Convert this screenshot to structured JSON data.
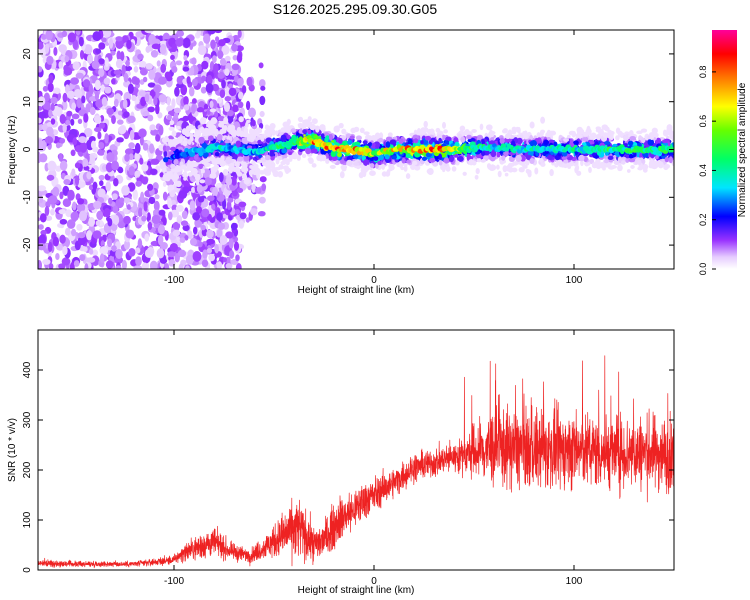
{
  "title": "S126.2025.295.09.30.G05",
  "colors": {
    "snr_line": "#ee2222",
    "axis": "#000000",
    "background": "#ffffff"
  },
  "chart_data": [
    {
      "type": "heatmap",
      "name": "spectrogram",
      "xlabel": "Height of straight line (km)",
      "ylabel": "Frequency (Hz)",
      "xlim": [
        -168,
        150
      ],
      "ylim": [
        -25,
        25
      ],
      "x_ticks": [
        -100,
        0,
        100
      ],
      "x_tick_labels": [
        "-100",
        "0",
        "100"
      ],
      "y_ticks": [
        -20,
        -10,
        0,
        10,
        20
      ],
      "y_tick_labels": [
        "-20",
        "-10",
        "0",
        "10",
        "20"
      ],
      "colorbar": {
        "label": "Normalized spectral amplitude",
        "range": [
          0.0,
          0.97
        ],
        "ticks": [
          0.0,
          0.2,
          0.4,
          0.6,
          0.8
        ],
        "tick_labels": [
          "0.0",
          "0.2",
          "0.4",
          "0.6",
          "0.8"
        ]
      },
      "ridge": {
        "description_points_x": [
          -100,
          -80,
          -60,
          -50,
          -40,
          -32,
          -25,
          -18,
          -10,
          -5,
          0,
          10,
          20,
          30,
          40,
          60,
          80,
          100,
          120,
          150
        ],
        "frequency_hz": [
          -1.5,
          0.5,
          -0.5,
          0.5,
          1.5,
          2.0,
          1.0,
          0.0,
          0.0,
          -0.5,
          -1.0,
          0.0,
          0.0,
          0.0,
          0.0,
          0.5,
          0.0,
          0.0,
          0.0,
          0.0
        ],
        "peak_amplitude": [
          0.3,
          0.4,
          0.35,
          0.45,
          0.55,
          0.85,
          0.8,
          0.9,
          0.85,
          0.8,
          0.7,
          0.75,
          0.85,
          0.9,
          0.7,
          0.4,
          0.45,
          0.45,
          0.5,
          0.5
        ]
      }
    },
    {
      "type": "line",
      "name": "snr",
      "xlabel": "Height of straight line (km)",
      "ylabel": "SNR (10 * v/v)",
      "xlim": [
        -168,
        150
      ],
      "ylim": [
        0,
        480
      ],
      "x_ticks": [
        -100,
        0,
        100
      ],
      "x_tick_labels": [
        "-100",
        "0",
        "100"
      ],
      "y_ticks": [
        0,
        100,
        200,
        300,
        400
      ],
      "y_tick_labels": [
        "0",
        "100",
        "200",
        "300",
        "400"
      ],
      "envelope": {
        "x": [
          -168,
          -150,
          -120,
          -100,
          -95,
          -85,
          -80,
          -72,
          -62,
          -55,
          -45,
          -38,
          -30,
          -25,
          -18,
          -10,
          -5,
          0,
          10,
          20,
          30,
          38,
          45,
          50,
          60,
          80,
          100,
          120,
          140,
          150
        ],
        "mean": [
          14,
          12,
          12,
          20,
          35,
          50,
          55,
          38,
          28,
          45,
          70,
          85,
          50,
          60,
          100,
          120,
          140,
          150,
          175,
          205,
          215,
          225,
          230,
          235,
          245,
          240,
          240,
          235,
          235,
          230
        ],
        "spread": [
          6,
          5,
          5,
          8,
          15,
          25,
          25,
          15,
          12,
          20,
          40,
          55,
          30,
          35,
          40,
          35,
          35,
          30,
          25,
          25,
          25,
          25,
          30,
          50,
          70,
          70,
          65,
          65,
          65,
          65
        ]
      }
    }
  ]
}
